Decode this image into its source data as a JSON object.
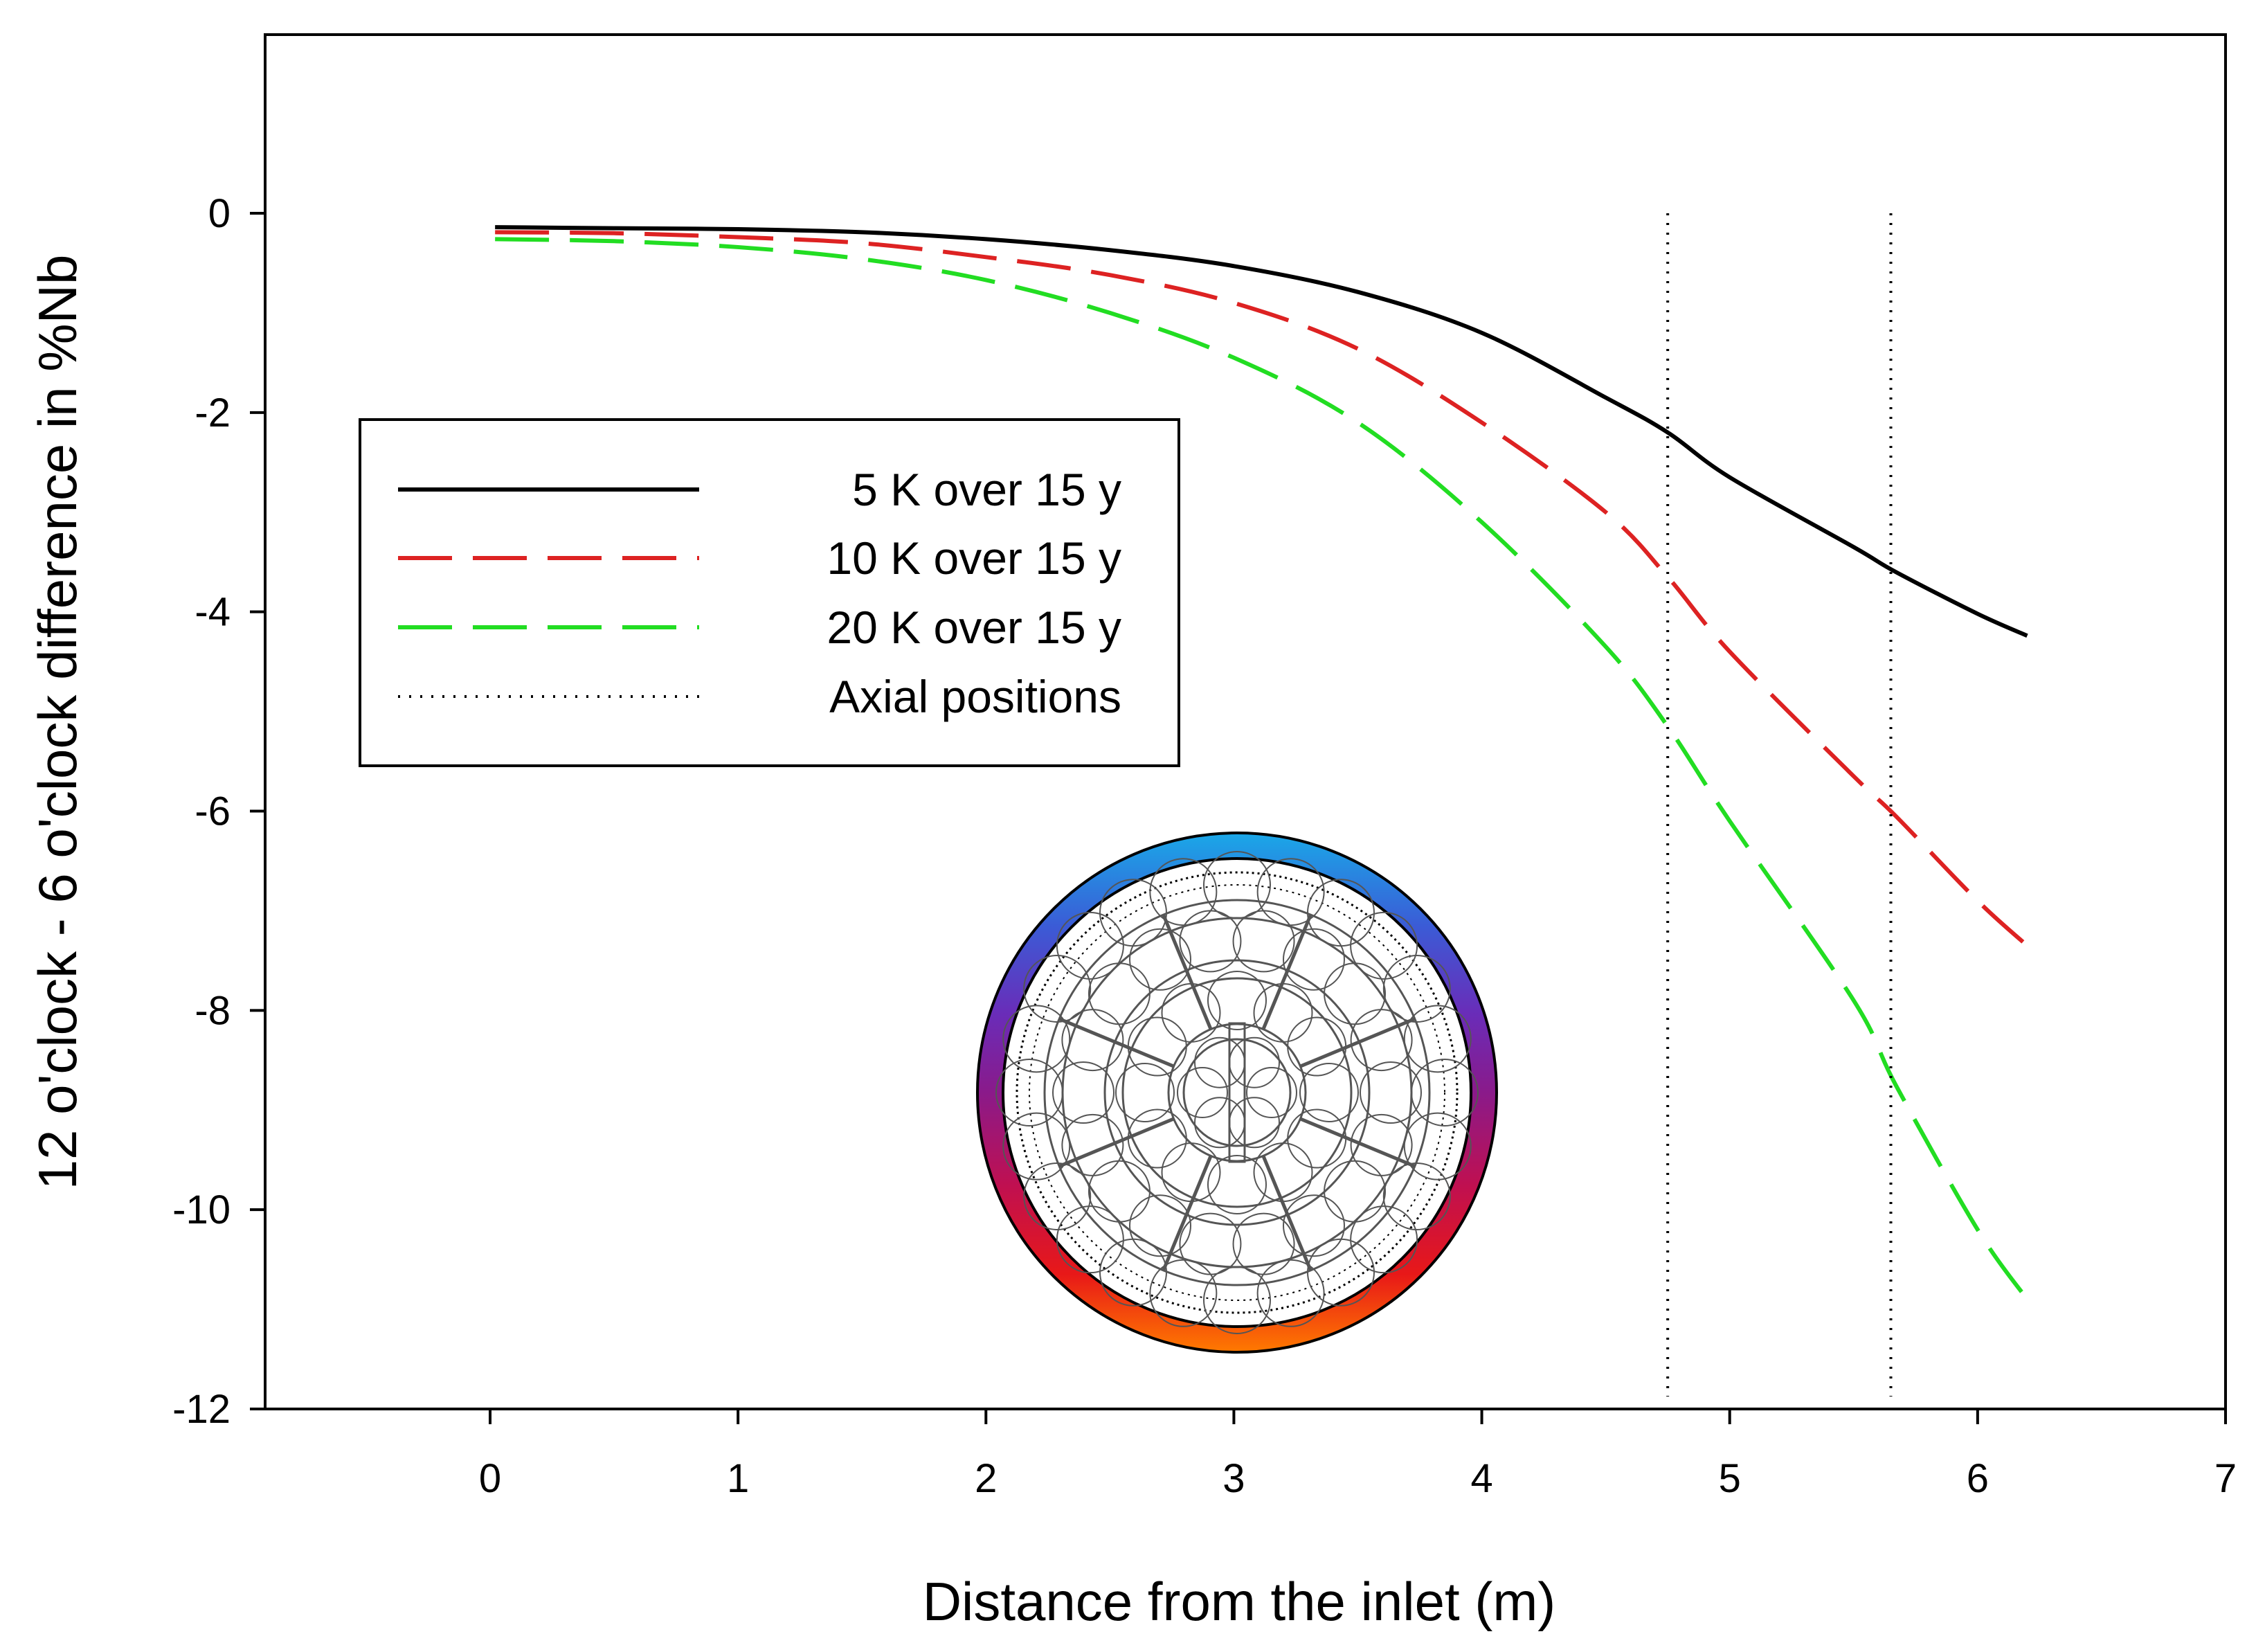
{
  "chart_data": {
    "type": "line",
    "title": "",
    "xlabel": "Distance from the inlet (m)",
    "ylabel": "12 o'clock - 6 o'clock difference in %Nb",
    "xlim": [
      -0.9,
      7
    ],
    "ylim": [
      -12,
      1.8
    ],
    "xticks": [
      0,
      1,
      2,
      3,
      4,
      5,
      6,
      7
    ],
    "yticks": [
      0,
      -2,
      -4,
      -6,
      -8,
      -10,
      -12
    ],
    "xtick_labels": [
      "0",
      "1",
      "2",
      "3",
      "4",
      "5",
      "6",
      "7"
    ],
    "ytick_labels": [
      "0",
      "-2",
      "-4",
      "-6",
      "-8",
      "-10",
      "-12"
    ],
    "legend_position": "upper-left",
    "series": [
      {
        "name": "5 K over 15 y",
        "color": "#000000",
        "style": "solid",
        "x": [
          0.02,
          0.5,
          1.0,
          1.5,
          2.0,
          2.5,
          3.0,
          3.5,
          4.0,
          4.5,
          4.75,
          5.0,
          5.5,
          5.67,
          6.0,
          6.2
        ],
        "y": [
          -0.14,
          -0.15,
          -0.16,
          -0.19,
          -0.26,
          -0.37,
          -0.53,
          -0.79,
          -1.2,
          -1.85,
          -2.2,
          -2.65,
          -3.35,
          -3.6,
          -4.02,
          -4.24
        ]
      },
      {
        "name": "10 K over 15 y",
        "color": "#dd2222",
        "style": "dashed",
        "x": [
          0.02,
          0.5,
          1.0,
          1.5,
          2.0,
          2.5,
          3.0,
          3.5,
          4.0,
          4.5,
          4.75,
          5.0,
          5.5,
          5.67,
          6.0,
          6.2
        ],
        "y": [
          -0.19,
          -0.2,
          -0.24,
          -0.3,
          -0.44,
          -0.62,
          -0.9,
          -1.36,
          -2.1,
          -3.0,
          -3.65,
          -4.4,
          -5.65,
          -6.05,
          -6.9,
          -7.35
        ]
      },
      {
        "name": "20 K over 15 y",
        "color": "#22dd22",
        "style": "dashed",
        "x": [
          0.02,
          0.5,
          1.0,
          1.5,
          2.0,
          2.5,
          3.0,
          3.5,
          4.0,
          4.5,
          4.75,
          5.0,
          5.5,
          5.67,
          6.0,
          6.2
        ],
        "y": [
          -0.26,
          -0.28,
          -0.34,
          -0.46,
          -0.67,
          -1.0,
          -1.45,
          -2.1,
          -3.1,
          -4.35,
          -5.15,
          -6.1,
          -7.9,
          -8.75,
          -10.2,
          -10.9
        ]
      },
      {
        "name": "Axial positions",
        "color": "#000000",
        "style": "dotted",
        "vlines": [
          4.75,
          5.65
        ]
      }
    ],
    "inset": {
      "description": "cross-section of fuel channel with temperature color ring",
      "ring_colors": [
        "#1aa8e8",
        "#3b5bd6",
        "#6a2cb8",
        "#8a1a8a",
        "#c01050",
        "#e81818",
        "#f05010",
        "#ff7a00"
      ]
    }
  }
}
